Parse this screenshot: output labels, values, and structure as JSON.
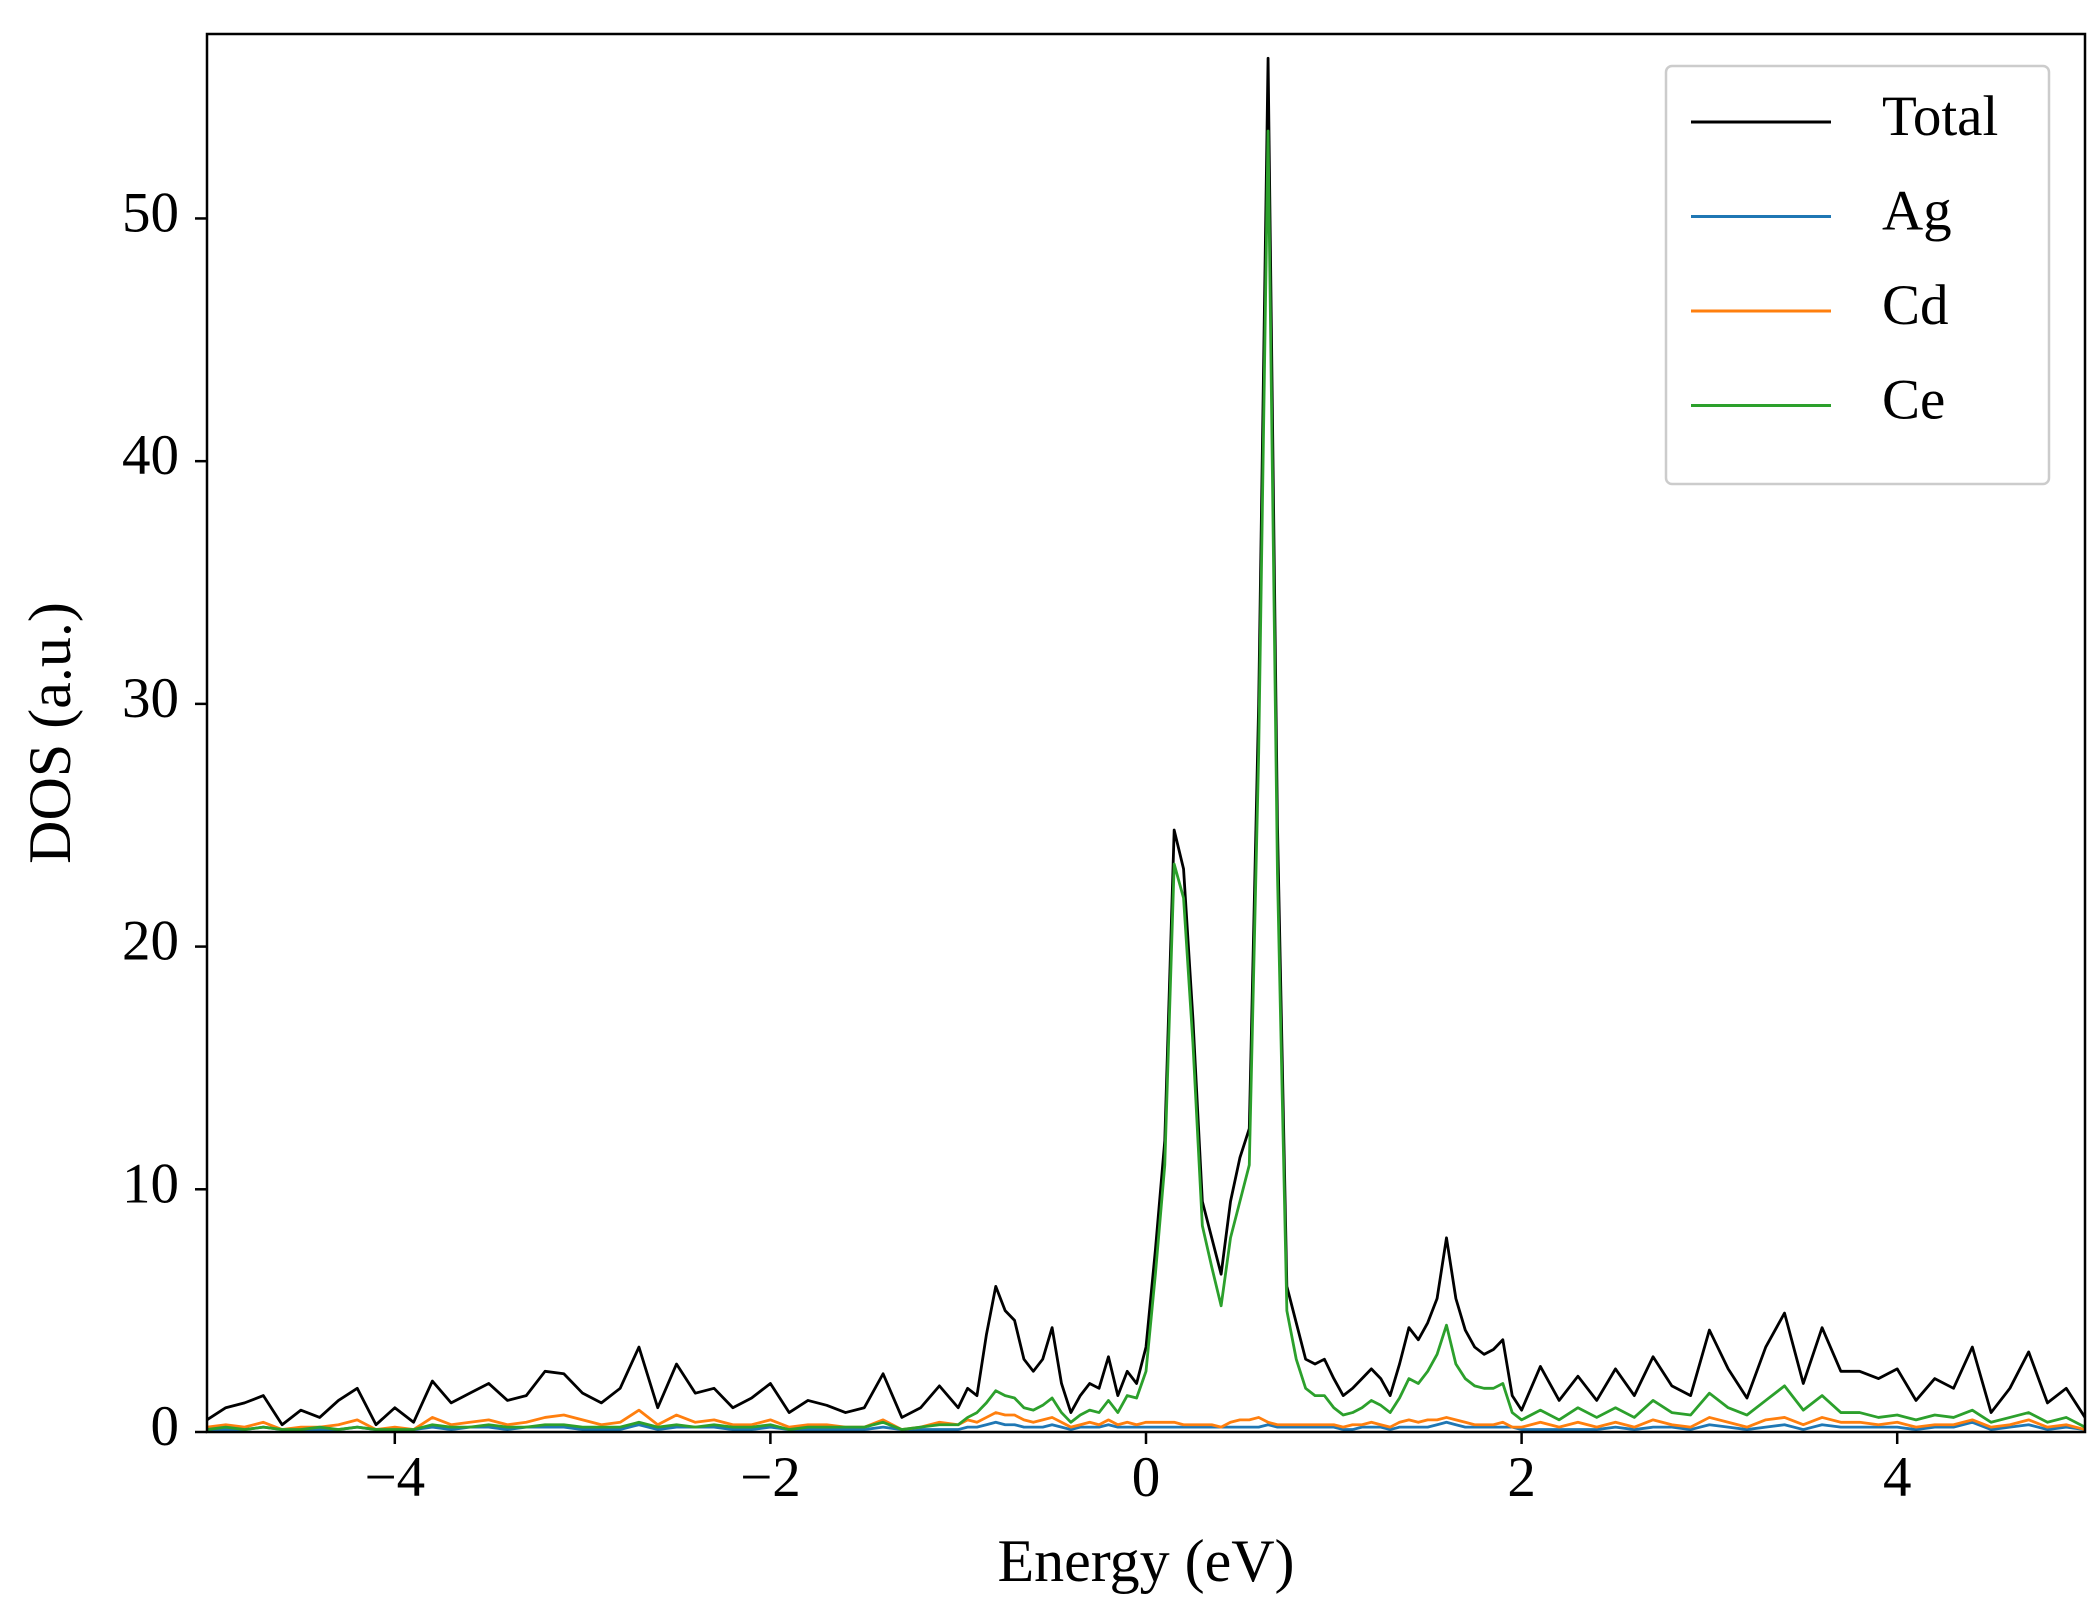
{
  "chart_data": {
    "type": "line",
    "x_label": "Energy (eV)",
    "y_label": "DOS (a.u.)",
    "xlim": [
      -5,
      5
    ],
    "ylim": [
      0,
      57.6
    ],
    "xticks": [
      {
        "value": -4,
        "label": "−4"
      },
      {
        "value": -2,
        "label": "−2"
      },
      0,
      2,
      4
    ],
    "yticks": [
      0,
      10,
      20,
      30,
      40,
      50
    ],
    "legend": "upper right",
    "x": [
      -5,
      -4.9,
      -4.8,
      -4.7,
      -4.6,
      -4.5,
      -4.4,
      -4.3,
      -4.2,
      -4.1,
      -4,
      -3.9,
      -3.8,
      -3.7,
      -3.6,
      -3.5,
      -3.4,
      -3.3,
      -3.2,
      -3.1,
      -3,
      -2.9,
      -2.8,
      -2.7,
      -2.6,
      -2.5,
      -2.4,
      -2.3,
      -2.2,
      -2.1,
      -2,
      -1.9,
      -1.8,
      -1.7,
      -1.6,
      -1.5,
      -1.4,
      -1.3,
      -1.2,
      -1.1,
      -1,
      -0.95,
      -0.9,
      -0.85,
      -0.8,
      -0.75,
      -0.7,
      -0.65,
      -0.6,
      -0.55,
      -0.5,
      -0.45,
      -0.4,
      -0.35,
      -0.3,
      -0.25,
      -0.2,
      -0.15,
      -0.1,
      -0.05,
      0,
      0.05,
      0.1,
      0.15,
      0.2,
      0.25,
      0.3,
      0.35,
      0.4,
      0.45,
      0.5,
      0.55,
      0.6,
      0.65,
      0.7,
      0.75,
      0.8,
      0.85,
      0.9,
      0.95,
      1,
      1.05,
      1.1,
      1.15,
      1.2,
      1.25,
      1.3,
      1.35,
      1.4,
      1.45,
      1.5,
      1.55,
      1.6,
      1.65,
      1.7,
      1.75,
      1.8,
      1.85,
      1.9,
      1.95,
      2,
      2.1,
      2.2,
      2.3,
      2.4,
      2.5,
      2.6,
      2.7,
      2.8,
      2.9,
      3,
      3.1,
      3.2,
      3.3,
      3.4,
      3.5,
      3.6,
      3.7,
      3.8,
      3.9,
      4,
      4.1,
      4.2,
      4.3,
      4.4,
      4.5,
      4.6,
      4.7,
      4.8,
      4.9,
      5
    ],
    "series": [
      {
        "name": "Total",
        "color": "#000000",
        "values": [
          0.5,
          1.0,
          1.2,
          1.5,
          0.3,
          0.9,
          0.6,
          1.3,
          1.8,
          0.3,
          1.0,
          0.4,
          2.1,
          1.2,
          1.6,
          2.0,
          1.3,
          1.5,
          2.5,
          2.4,
          1.6,
          1.2,
          1.8,
          3.5,
          1.0,
          2.8,
          1.6,
          1.8,
          1.0,
          1.4,
          2.0,
          0.8,
          1.3,
          1.1,
          0.8,
          1.0,
          2.4,
          0.6,
          1.0,
          1.9,
          1.0,
          1.8,
          1.5,
          4.0,
          6.0,
          5.0,
          4.6,
          3.0,
          2.5,
          3.0,
          4.3,
          2.0,
          0.8,
          1.5,
          2.0,
          1.8,
          3.1,
          1.5,
          2.5,
          2.0,
          3.5,
          7.5,
          12,
          24.8,
          23.2,
          17,
          9.5,
          8.0,
          6.5,
          9.5,
          11.3,
          12.5,
          30,
          56.6,
          25,
          6.0,
          4.5,
          3.0,
          2.8,
          3.0,
          2.2,
          1.5,
          1.8,
          2.2,
          2.6,
          2.2,
          1.5,
          2.8,
          4.3,
          3.8,
          4.5,
          5.5,
          8.0,
          5.5,
          4.2,
          3.5,
          3.2,
          3.4,
          3.8,
          1.5,
          0.9,
          2.7,
          1.3,
          2.3,
          1.3,
          2.6,
          1.5,
          3.1,
          1.9,
          1.5,
          4.2,
          2.6,
          1.4,
          3.5,
          4.9,
          2.0,
          4.3,
          2.5,
          2.5,
          2.2,
          2.6,
          1.3,
          2.2,
          1.8,
          3.5,
          0.8,
          1.8,
          3.3,
          1.2,
          1.8,
          0.6
        ]
      },
      {
        "name": "Ag",
        "color": "#1f77b4",
        "values": [
          0.1,
          0.1,
          0.1,
          0.2,
          0.1,
          0.1,
          0.1,
          0.1,
          0.2,
          0.1,
          0.1,
          0.1,
          0.2,
          0.1,
          0.2,
          0.2,
          0.1,
          0.2,
          0.2,
          0.2,
          0.1,
          0.1,
          0.1,
          0.3,
          0.1,
          0.2,
          0.2,
          0.2,
          0.1,
          0.1,
          0.2,
          0.1,
          0.1,
          0.1,
          0.1,
          0.1,
          0.2,
          0.1,
          0.1,
          0.1,
          0.1,
          0.2,
          0.2,
          0.3,
          0.4,
          0.3,
          0.3,
          0.2,
          0.2,
          0.2,
          0.3,
          0.2,
          0.1,
          0.2,
          0.2,
          0.2,
          0.3,
          0.2,
          0.2,
          0.2,
          0.2,
          0.2,
          0.2,
          0.2,
          0.2,
          0.2,
          0.2,
          0.2,
          0.2,
          0.2,
          0.2,
          0.2,
          0.2,
          0.3,
          0.2,
          0.2,
          0.2,
          0.2,
          0.2,
          0.2,
          0.2,
          0.1,
          0.1,
          0.2,
          0.2,
          0.2,
          0.1,
          0.2,
          0.2,
          0.2,
          0.2,
          0.3,
          0.4,
          0.3,
          0.2,
          0.2,
          0.2,
          0.2,
          0.2,
          0.2,
          0.1,
          0.1,
          0.1,
          0.1,
          0.1,
          0.2,
          0.1,
          0.2,
          0.2,
          0.1,
          0.3,
          0.2,
          0.1,
          0.2,
          0.3,
          0.1,
          0.3,
          0.2,
          0.2,
          0.2,
          0.2,
          0.1,
          0.2,
          0.2,
          0.4,
          0.1,
          0.2,
          0.3,
          0.1,
          0.2,
          0.1
        ]
      },
      {
        "name": "Cd",
        "color": "#ff7f0e",
        "values": [
          0.2,
          0.3,
          0.2,
          0.4,
          0.1,
          0.2,
          0.2,
          0.3,
          0.5,
          0.1,
          0.2,
          0.1,
          0.6,
          0.3,
          0.4,
          0.5,
          0.3,
          0.4,
          0.6,
          0.7,
          0.5,
          0.3,
          0.4,
          0.9,
          0.3,
          0.7,
          0.4,
          0.5,
          0.3,
          0.3,
          0.5,
          0.2,
          0.3,
          0.3,
          0.2,
          0.2,
          0.5,
          0.1,
          0.2,
          0.4,
          0.3,
          0.5,
          0.4,
          0.6,
          0.8,
          0.7,
          0.7,
          0.5,
          0.4,
          0.5,
          0.6,
          0.4,
          0.2,
          0.3,
          0.4,
          0.3,
          0.5,
          0.3,
          0.4,
          0.3,
          0.4,
          0.4,
          0.4,
          0.4,
          0.3,
          0.3,
          0.3,
          0.3,
          0.2,
          0.4,
          0.5,
          0.5,
          0.6,
          0.4,
          0.3,
          0.3,
          0.3,
          0.3,
          0.3,
          0.3,
          0.3,
          0.2,
          0.3,
          0.3,
          0.4,
          0.3,
          0.2,
          0.4,
          0.5,
          0.4,
          0.5,
          0.5,
          0.6,
          0.5,
          0.4,
          0.3,
          0.3,
          0.3,
          0.4,
          0.2,
          0.2,
          0.4,
          0.2,
          0.4,
          0.2,
          0.4,
          0.2,
          0.5,
          0.3,
          0.2,
          0.6,
          0.4,
          0.2,
          0.5,
          0.6,
          0.3,
          0.6,
          0.4,
          0.4,
          0.3,
          0.4,
          0.2,
          0.3,
          0.3,
          0.5,
          0.2,
          0.3,
          0.5,
          0.2,
          0.3,
          0.1
        ]
      },
      {
        "name": "Ce",
        "color": "#2ca02c",
        "values": [
          0.1,
          0.2,
          0.1,
          0.2,
          0.1,
          0.1,
          0.2,
          0.1,
          0.2,
          0.1,
          0.1,
          0.1,
          0.3,
          0.2,
          0.2,
          0.3,
          0.2,
          0.2,
          0.3,
          0.3,
          0.2,
          0.2,
          0.2,
          0.4,
          0.2,
          0.3,
          0.2,
          0.3,
          0.2,
          0.2,
          0.3,
          0.1,
          0.2,
          0.2,
          0.2,
          0.2,
          0.4,
          0.1,
          0.2,
          0.3,
          0.3,
          0.6,
          0.8,
          1.2,
          1.7,
          1.5,
          1.4,
          1.0,
          0.9,
          1.1,
          1.4,
          0.8,
          0.4,
          0.7,
          0.9,
          0.8,
          1.3,
          0.8,
          1.5,
          1.4,
          2.5,
          6.5,
          11,
          23.4,
          22,
          16,
          8.5,
          6.8,
          5.2,
          8.0,
          9.5,
          11,
          28,
          53.6,
          23,
          5.0,
          3.0,
          1.8,
          1.5,
          1.5,
          1.0,
          0.7,
          0.8,
          1.0,
          1.3,
          1.1,
          0.8,
          1.4,
          2.2,
          2.0,
          2.5,
          3.2,
          4.4,
          2.8,
          2.2,
          1.9,
          1.8,
          1.8,
          2.0,
          0.8,
          0.5,
          0.9,
          0.5,
          1.0,
          0.6,
          1.0,
          0.6,
          1.3,
          0.8,
          0.7,
          1.6,
          1.0,
          0.7,
          1.3,
          1.9,
          0.9,
          1.5,
          0.8,
          0.8,
          0.6,
          0.7,
          0.5,
          0.7,
          0.6,
          0.9,
          0.4,
          0.6,
          0.8,
          0.4,
          0.6,
          0.2
        ]
      }
    ]
  }
}
